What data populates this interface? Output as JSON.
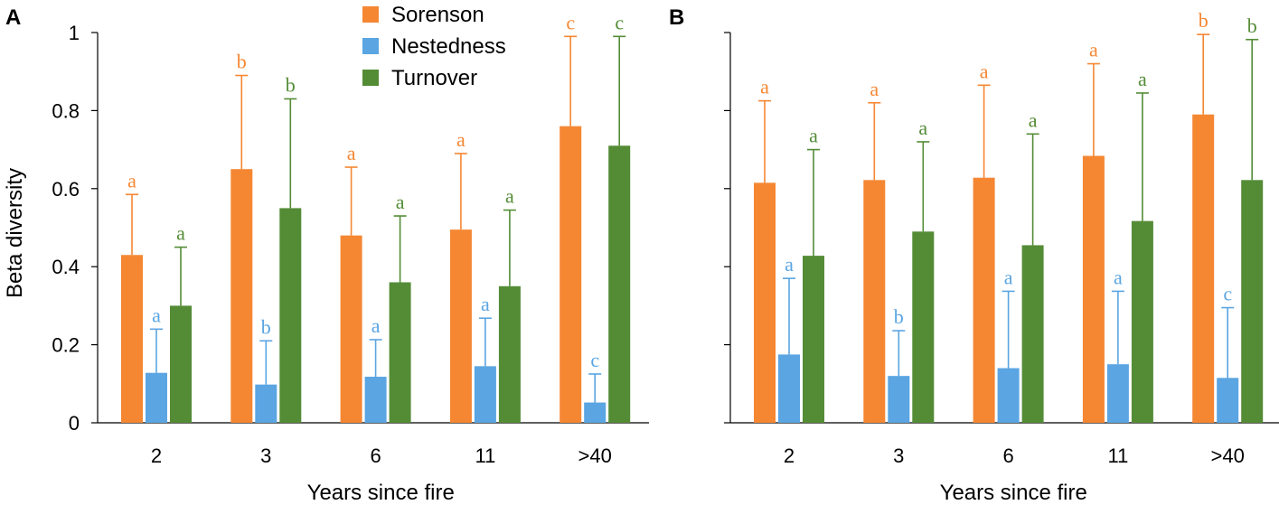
{
  "legend": [
    {
      "name": "Sorenson",
      "color": "#F58733"
    },
    {
      "name": "Nestedness",
      "color": "#5AA5E2"
    },
    {
      "name": "Turnover",
      "color": "#548C36"
    }
  ],
  "chart_data": [
    {
      "type": "bar",
      "panel": "A",
      "categories": [
        "2",
        "3",
        "6",
        "11",
        ">40"
      ],
      "xlabel": "Years since fire",
      "ylabel": "Beta diversity",
      "ylim": [
        0,
        1
      ],
      "yticks": [
        "0",
        "0.2",
        "0.4",
        "0.6",
        "0.8",
        "1"
      ],
      "series": [
        {
          "name": "Sorenson",
          "color": "#F58733",
          "values": [
            0.43,
            0.65,
            0.48,
            0.495,
            0.76
          ],
          "error_top": [
            0.585,
            0.89,
            0.655,
            0.69,
            0.99
          ],
          "letters": [
            "a",
            "b",
            "a",
            "a",
            "c"
          ]
        },
        {
          "name": "Nestedness",
          "color": "#5AA5E2",
          "values": [
            0.128,
            0.098,
            0.118,
            0.145,
            0.052
          ],
          "error_top": [
            0.24,
            0.21,
            0.213,
            0.268,
            0.125
          ],
          "letters": [
            "a",
            "b",
            "a",
            "a",
            "c"
          ]
        },
        {
          "name": "Turnover",
          "color": "#548C36",
          "values": [
            0.3,
            0.55,
            0.36,
            0.35,
            0.71
          ],
          "error_top": [
            0.45,
            0.83,
            0.53,
            0.545,
            0.99
          ],
          "letters": [
            "a",
            "b",
            "a",
            "a",
            "c"
          ]
        }
      ]
    },
    {
      "type": "bar",
      "panel": "B",
      "categories": [
        "2",
        "3",
        "6",
        "11",
        ">40"
      ],
      "xlabel": "Years since fire",
      "ylabel": "",
      "ylim": [
        0,
        1
      ],
      "yticks": [],
      "series": [
        {
          "name": "Sorenson",
          "color": "#F58733",
          "values": [
            0.615,
            0.622,
            0.628,
            0.684,
            0.79
          ],
          "error_top": [
            0.825,
            0.82,
            0.865,
            0.92,
            0.995
          ],
          "letters": [
            "a",
            "a",
            "a",
            "a",
            "b"
          ]
        },
        {
          "name": "Nestedness",
          "color": "#5AA5E2",
          "values": [
            0.175,
            0.12,
            0.14,
            0.15,
            0.115
          ],
          "error_top": [
            0.37,
            0.236,
            0.337,
            0.337,
            0.295
          ],
          "letters": [
            "a",
            "b",
            "a",
            "a",
            "c"
          ]
        },
        {
          "name": "Turnover",
          "color": "#548C36",
          "values": [
            0.428,
            0.49,
            0.455,
            0.517,
            0.622
          ],
          "error_top": [
            0.7,
            0.72,
            0.74,
            0.845,
            0.982
          ],
          "letters": [
            "a",
            "a",
            "a",
            "a",
            "b"
          ]
        }
      ]
    }
  ]
}
